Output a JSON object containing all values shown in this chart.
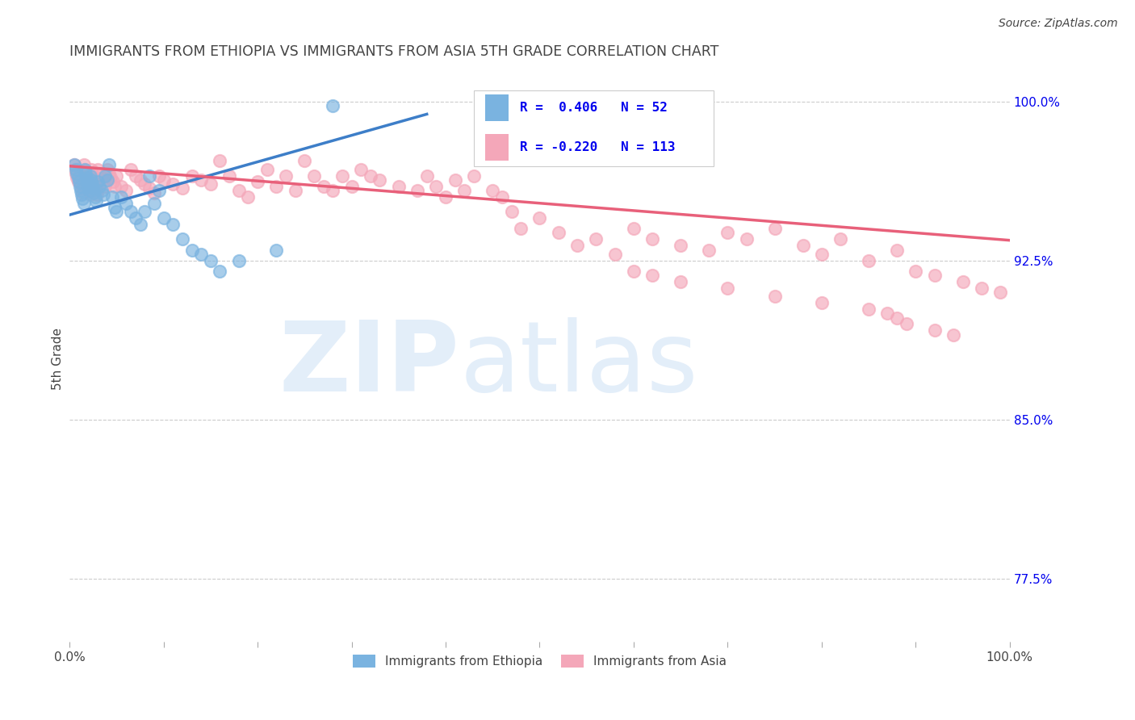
{
  "title": "IMMIGRANTS FROM ETHIOPIA VS IMMIGRANTS FROM ASIA 5TH GRADE CORRELATION CHART",
  "source": "Source: ZipAtlas.com",
  "ylabel": "5th Grade",
  "yticks": [
    "100.0%",
    "92.5%",
    "85.0%",
    "77.5%"
  ],
  "ytick_vals": [
    1.0,
    0.925,
    0.85,
    0.775
  ],
  "blue_color": "#7ab3e0",
  "pink_color": "#f4a7b9",
  "blue_line_color": "#3d7ec8",
  "pink_line_color": "#e8607a",
  "legend_text_color": "#0000ee",
  "title_color": "#444444",
  "xlim": [
    0.0,
    1.0
  ],
  "ylim": [
    0.745,
    1.012
  ],
  "blue_trendline_x": [
    0.0,
    0.38
  ],
  "blue_trendline_y": [
    0.9465,
    0.994
  ],
  "pink_trendline_x": [
    0.0,
    1.0
  ],
  "pink_trendline_y": [
    0.9695,
    0.9345
  ],
  "ethiopia_points_x": [
    0.005,
    0.007,
    0.008,
    0.009,
    0.01,
    0.011,
    0.012,
    0.013,
    0.014,
    0.015,
    0.016,
    0.017,
    0.018,
    0.019,
    0.02,
    0.021,
    0.022,
    0.023,
    0.024,
    0.025,
    0.026,
    0.027,
    0.028,
    0.03,
    0.032,
    0.034,
    0.036,
    0.038,
    0.04,
    0.042,
    0.045,
    0.048,
    0.05,
    0.055,
    0.06,
    0.065,
    0.07,
    0.075,
    0.08,
    0.085,
    0.09,
    0.095,
    0.1,
    0.11,
    0.12,
    0.13,
    0.14,
    0.15,
    0.16,
    0.18,
    0.22,
    0.28
  ],
  "ethiopia_points_y": [
    0.97,
    0.968,
    0.966,
    0.964,
    0.962,
    0.96,
    0.958,
    0.956,
    0.954,
    0.952,
    0.968,
    0.966,
    0.964,
    0.962,
    0.96,
    0.958,
    0.965,
    0.963,
    0.961,
    0.959,
    0.957,
    0.955,
    0.953,
    0.962,
    0.96,
    0.958,
    0.956,
    0.965,
    0.963,
    0.97,
    0.955,
    0.95,
    0.948,
    0.955,
    0.952,
    0.948,
    0.945,
    0.942,
    0.948,
    0.965,
    0.952,
    0.958,
    0.945,
    0.942,
    0.935,
    0.93,
    0.928,
    0.925,
    0.92,
    0.925,
    0.93,
    0.998
  ],
  "asia_points_x": [
    0.005,
    0.006,
    0.007,
    0.008,
    0.009,
    0.01,
    0.011,
    0.012,
    0.013,
    0.014,
    0.015,
    0.016,
    0.017,
    0.018,
    0.019,
    0.02,
    0.021,
    0.022,
    0.023,
    0.024,
    0.025,
    0.026,
    0.027,
    0.028,
    0.029,
    0.03,
    0.032,
    0.034,
    0.036,
    0.038,
    0.04,
    0.042,
    0.044,
    0.046,
    0.048,
    0.05,
    0.055,
    0.06,
    0.065,
    0.07,
    0.075,
    0.08,
    0.085,
    0.09,
    0.095,
    0.1,
    0.11,
    0.12,
    0.13,
    0.14,
    0.15,
    0.16,
    0.17,
    0.18,
    0.19,
    0.2,
    0.21,
    0.22,
    0.23,
    0.24,
    0.25,
    0.26,
    0.27,
    0.28,
    0.29,
    0.3,
    0.31,
    0.32,
    0.33,
    0.35,
    0.37,
    0.38,
    0.39,
    0.4,
    0.41,
    0.42,
    0.43,
    0.45,
    0.46,
    0.47,
    0.48,
    0.5,
    0.52,
    0.54,
    0.56,
    0.58,
    0.6,
    0.62,
    0.65,
    0.68,
    0.7,
    0.72,
    0.75,
    0.78,
    0.8,
    0.82,
    0.85,
    0.88,
    0.9,
    0.92,
    0.95,
    0.97,
    0.99,
    0.65,
    0.7,
    0.75,
    0.8,
    0.85,
    0.87,
    0.88,
    0.89,
    0.92,
    0.94,
    0.6,
    0.62
  ],
  "asia_points_y": [
    0.97,
    0.968,
    0.966,
    0.964,
    0.962,
    0.965,
    0.963,
    0.961,
    0.959,
    0.957,
    0.97,
    0.968,
    0.966,
    0.964,
    0.962,
    0.96,
    0.958,
    0.956,
    0.968,
    0.966,
    0.964,
    0.962,
    0.96,
    0.958,
    0.956,
    0.968,
    0.966,
    0.964,
    0.962,
    0.96,
    0.968,
    0.966,
    0.964,
    0.962,
    0.96,
    0.965,
    0.96,
    0.958,
    0.968,
    0.965,
    0.963,
    0.961,
    0.959,
    0.957,
    0.965,
    0.963,
    0.961,
    0.959,
    0.965,
    0.963,
    0.961,
    0.972,
    0.965,
    0.958,
    0.955,
    0.962,
    0.968,
    0.96,
    0.965,
    0.958,
    0.972,
    0.965,
    0.96,
    0.958,
    0.965,
    0.96,
    0.968,
    0.965,
    0.963,
    0.96,
    0.958,
    0.965,
    0.96,
    0.955,
    0.963,
    0.958,
    0.965,
    0.958,
    0.955,
    0.948,
    0.94,
    0.945,
    0.938,
    0.932,
    0.935,
    0.928,
    0.94,
    0.935,
    0.932,
    0.93,
    0.938,
    0.935,
    0.94,
    0.932,
    0.928,
    0.935,
    0.925,
    0.93,
    0.92,
    0.918,
    0.915,
    0.912,
    0.91,
    0.915,
    0.912,
    0.908,
    0.905,
    0.902,
    0.9,
    0.898,
    0.895,
    0.892,
    0.89,
    0.92,
    0.918
  ]
}
